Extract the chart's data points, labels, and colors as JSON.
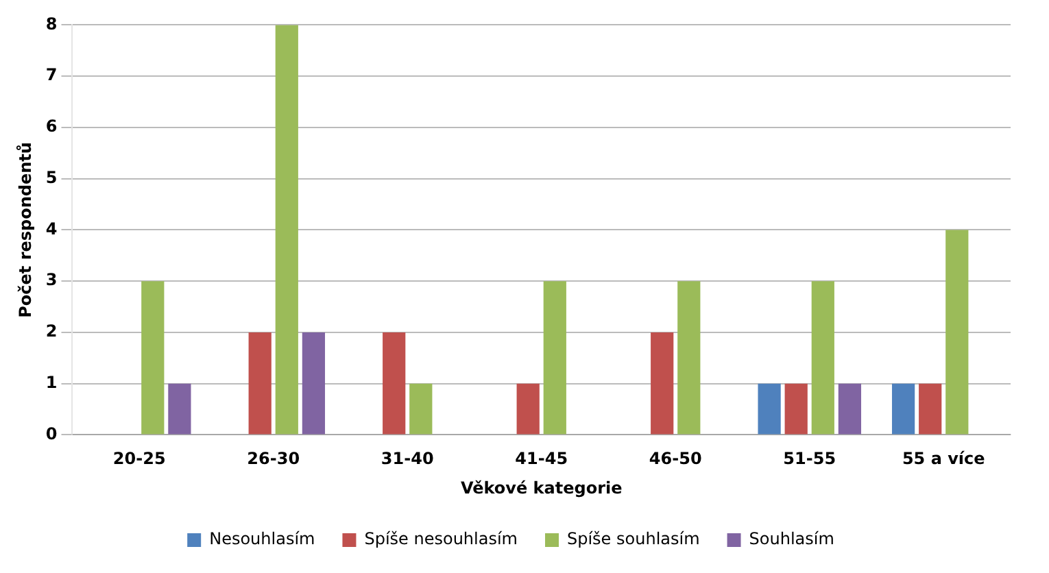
{
  "chart_data": {
    "type": "bar",
    "xlabel": "Věkové kategorie",
    "ylabel": "Počet respondentů",
    "categories": [
      "20-25",
      "26-30",
      "31-40",
      "41-45",
      "46-50",
      "51-55",
      "55 a více"
    ],
    "series": [
      {
        "name": "Nesouhlasím",
        "color": "#4f81bd",
        "values": [
          0,
          0,
          0,
          0,
          0,
          1,
          1
        ]
      },
      {
        "name": "Spíše nesouhlasím",
        "color": "#c0504d",
        "values": [
          0,
          2,
          2,
          1,
          2,
          1,
          1
        ]
      },
      {
        "name": "Spíše souhlasím",
        "color": "#9bbb59",
        "values": [
          3,
          8,
          1,
          3,
          3,
          3,
          4
        ]
      },
      {
        "name": "Souhlasím",
        "color": "#8064a2",
        "values": [
          1,
          2,
          0,
          0,
          0,
          1,
          0
        ]
      }
    ],
    "ylim": [
      0,
      8
    ],
    "yticks": [
      0,
      1,
      2,
      3,
      4,
      5,
      6,
      7,
      8
    ],
    "grid": "y",
    "legend": "bottom"
  }
}
